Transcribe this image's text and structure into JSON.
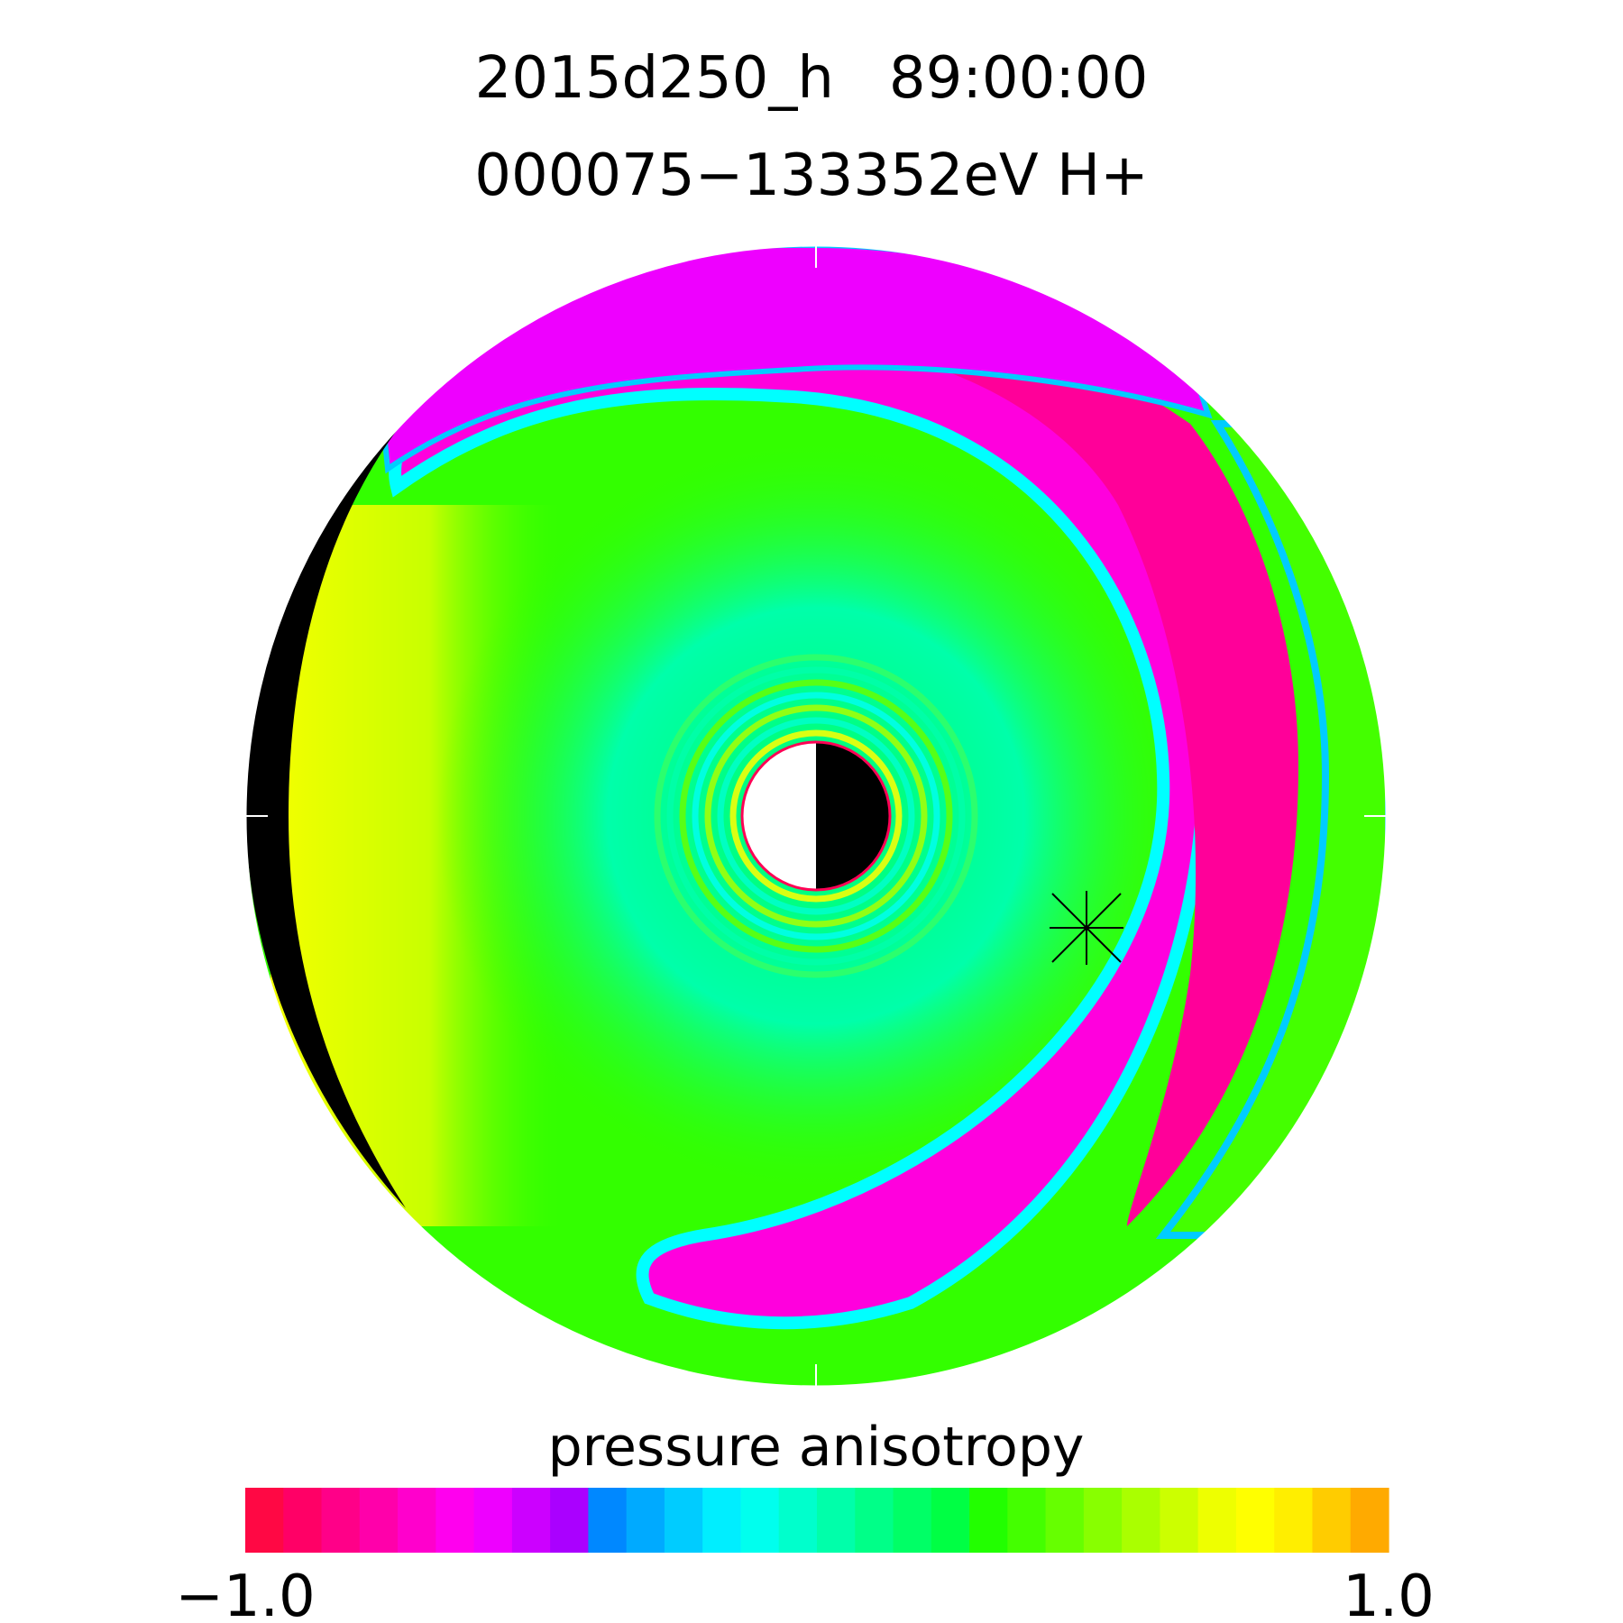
{
  "chart_data": {
    "type": "heatmap",
    "projection": "polar equatorial-plane map",
    "title_line1": "2015d250_h   89:00:00",
    "title_line2": "000075−133352eV H+",
    "colorbar": {
      "label": "pressure anisotropy",
      "min_label": "−1.0",
      "max_label": "1.0",
      "range": [
        -1.0,
        1.0
      ],
      "colors": [
        "#ff0844",
        "#ff0066",
        "#ff0088",
        "#ff00aa",
        "#ff00cc",
        "#ff00ee",
        "#ee00ff",
        "#cc00ff",
        "#aa00ff",
        "#0088ff",
        "#00aaff",
        "#00ccff",
        "#00eeff",
        "#00ffee",
        "#00ffcc",
        "#00ffaa",
        "#00ff88",
        "#00ff66",
        "#00ff44",
        "#22ff00",
        "#44ff00",
        "#66ff00",
        "#88ff00",
        "#aaff00",
        "#ccff00",
        "#eeff00",
        "#ffff00",
        "#ffee00",
        "#ffcc00",
        "#ffaa00"
      ]
    },
    "field_colors": {
      "background_green": "#33ff00",
      "inner_teal": "#00ffaa",
      "boundary_cyan": "#00ffff",
      "band_magenta": "#ff00dd",
      "band_pink": "#ff0099",
      "yellow": "#eeff00",
      "night_shadow": "#000000",
      "earth_outline": "#ff0055",
      "marker": "#000000"
    }
  }
}
